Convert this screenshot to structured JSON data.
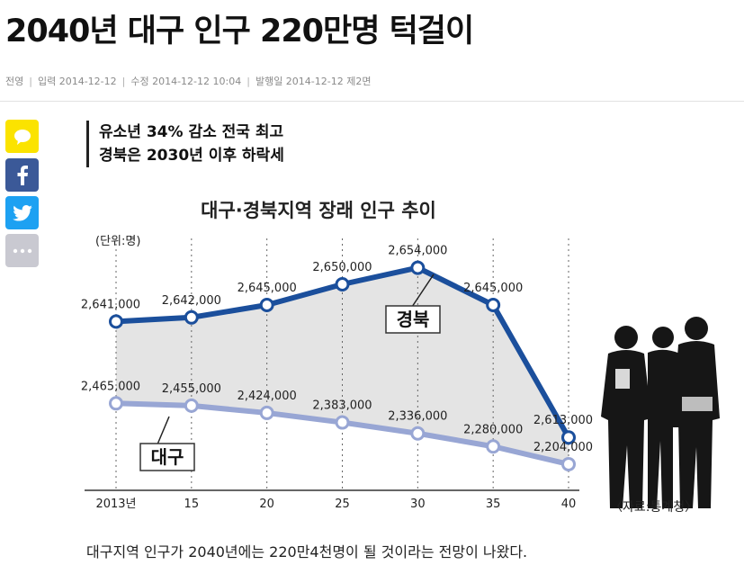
{
  "article": {
    "headline": "2040년 대구 인구 220만명 턱걸이",
    "author": "전영",
    "input_date": "입력 2014-12-12",
    "modified_date": "수정 2014-12-12 10:04",
    "issue_info": "발행일 2014-12-12 제2면",
    "subhead_lines": [
      "유소년 34% 감소 전국 최고",
      "경북은 2030년 이후 하락세"
    ],
    "first_paragraph": "대구지역 인구가 2040년에는 220만4천명이 될 것이라는 전망이 나왔다."
  },
  "share": [
    {
      "icon": "kakao-talk-icon",
      "color": "#fbe300"
    },
    {
      "icon": "facebook-icon",
      "color": "#3b5998"
    },
    {
      "icon": "twitter-icon",
      "color": "#1da1f2"
    },
    {
      "icon": "more-icon",
      "color": "#c9c9d1"
    }
  ],
  "chart_data": {
    "type": "line",
    "title": "대구·경북지역 장래 인구 추이",
    "unit_label": "(단위:명)",
    "source": "〈자료:통계청〉",
    "categories": [
      "2013년",
      "15",
      "20",
      "25",
      "30",
      "35",
      "40"
    ],
    "series": [
      {
        "name": "경북",
        "color": "#1b4f9c",
        "values": [
          2641000,
          2642000,
          2645000,
          2650000,
          2654000,
          2645000,
          2613000
        ],
        "value_labels": [
          "2,641,000",
          "2,642,000",
          "2,645,000",
          "2,650,000",
          "2,654,000",
          "2,645,000",
          "2,613,000"
        ]
      },
      {
        "name": "대구",
        "color": "#98a6d4",
        "values": [
          2465000,
          2455000,
          2424000,
          2383000,
          2336000,
          2280000,
          2204000
        ],
        "value_labels": [
          "2,465,000",
          "2,455,000",
          "2,424,000",
          "2,383,000",
          "2,336,000",
          "2,280,000",
          "2,204,000"
        ]
      }
    ]
  }
}
